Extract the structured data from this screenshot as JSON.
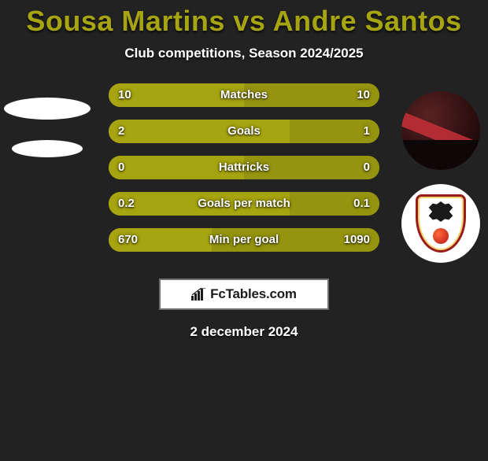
{
  "colors": {
    "background": "#222222",
    "title": "#a6a410",
    "bar_left": "#a6a410",
    "bar_right": "#95940f",
    "bar_track": "#a6a410",
    "text": "#ffffff"
  },
  "title": "Sousa Martins vs Andre Santos",
  "subtitle": "Club competitions, Season 2024/2025",
  "stats": [
    {
      "label": "Matches",
      "left_val": "10",
      "right_val": "10",
      "left_pct": 50,
      "right_pct": 50
    },
    {
      "label": "Goals",
      "left_val": "2",
      "right_val": "1",
      "left_pct": 67,
      "right_pct": 33
    },
    {
      "label": "Hattricks",
      "left_val": "0",
      "right_val": "0",
      "left_pct": 50,
      "right_pct": 50
    },
    {
      "label": "Goals per match",
      "left_val": "0.2",
      "right_val": "0.1",
      "left_pct": 67,
      "right_pct": 33
    },
    {
      "label": "Min per goal",
      "left_val": "670",
      "right_val": "1090",
      "left_pct": 38,
      "right_pct": 62
    }
  ],
  "watermark_text": "FcTables.com",
  "date_text": "2 december 2024"
}
